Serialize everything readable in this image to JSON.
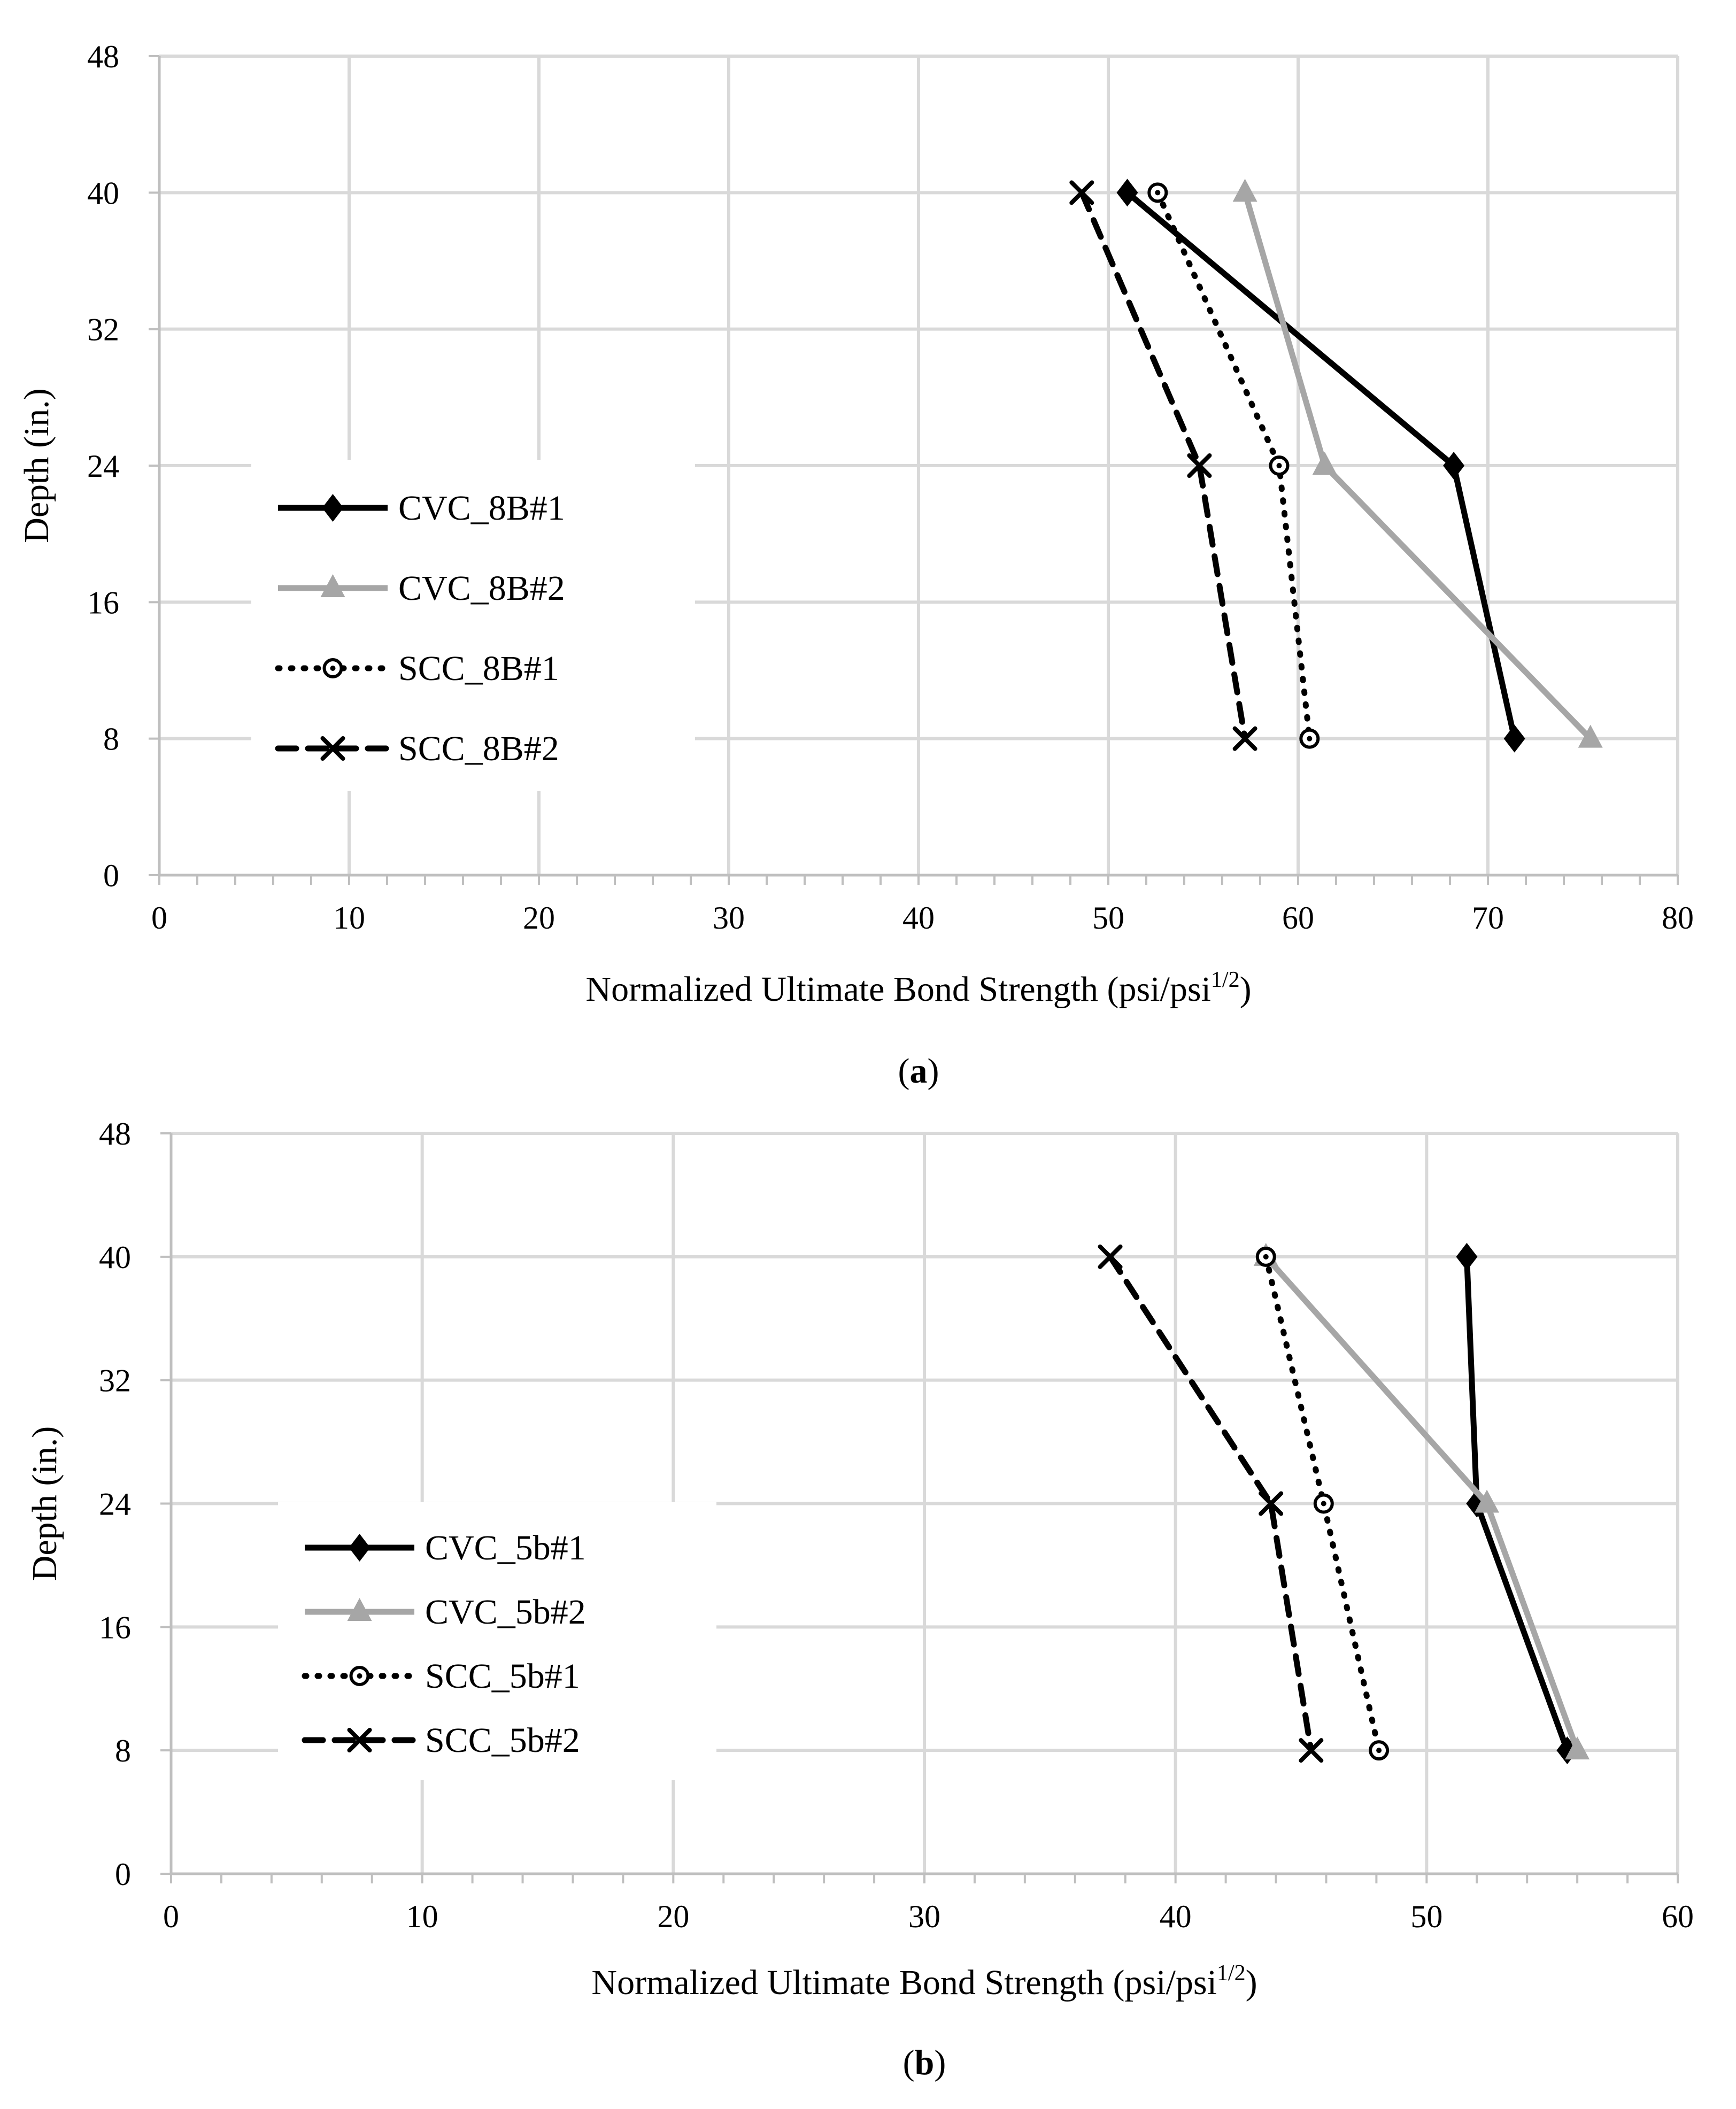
{
  "colors": {
    "black": "#000000",
    "gray": "#a6a6a6",
    "grid": "#d9d9d9",
    "axis": "#bfbfbf"
  },
  "chart_data": [
    {
      "type": "line",
      "caption_letter": "a",
      "xlabel": "Normalized Ultimate Bond Strength (psi/psi",
      "xlabel_sup": "1/2",
      "xlabel_close": ")",
      "ylabel": "Depth (in.)",
      "xlim": [
        0,
        80
      ],
      "ylim": [
        0,
        48
      ],
      "xticks": [
        0,
        10,
        20,
        30,
        40,
        50,
        60,
        70,
        80
      ],
      "yticks": [
        0,
        8,
        16,
        24,
        32,
        40,
        48
      ],
      "series": [
        {
          "name": "CVC_8B#1",
          "color": "#000000",
          "dash": "solid",
          "marker": "diamond",
          "points": [
            [
              51.0,
              40
            ],
            [
              68.2,
              24
            ],
            [
              71.4,
              8
            ]
          ]
        },
        {
          "name": "CVC_8B#2",
          "color": "#a6a6a6",
          "dash": "solid",
          "marker": "triangle",
          "points": [
            [
              57.2,
              40
            ],
            [
              61.4,
              24
            ],
            [
              75.4,
              8
            ]
          ]
        },
        {
          "name": "SCC_8B#1",
          "color": "#000000",
          "dash": "dotted",
          "marker": "circle",
          "points": [
            [
              52.6,
              40
            ],
            [
              59.0,
              24
            ],
            [
              60.6,
              8
            ]
          ]
        },
        {
          "name": "SCC_8B#2",
          "color": "#000000",
          "dash": "dashed",
          "marker": "x",
          "points": [
            [
              48.6,
              40
            ],
            [
              54.8,
              24
            ],
            [
              57.2,
              8
            ]
          ]
        }
      ]
    },
    {
      "type": "line",
      "caption_letter": "b",
      "xlabel": "Normalized Ultimate Bond Strength (psi/psi",
      "xlabel_sup": "1/2",
      "xlabel_close": ")",
      "ylabel": "Depth (in.)",
      "xlim": [
        0,
        60
      ],
      "ylim": [
        0,
        48
      ],
      "xticks": [
        0,
        10,
        20,
        30,
        40,
        50,
        60
      ],
      "yticks": [
        0,
        8,
        16,
        24,
        32,
        40,
        48
      ],
      "series": [
        {
          "name": "CVC_5b#1",
          "color": "#000000",
          "dash": "solid",
          "marker": "diamond",
          "points": [
            [
              51.6,
              40
            ],
            [
              52.0,
              24
            ],
            [
              55.6,
              8
            ]
          ]
        },
        {
          "name": "CVC_5b#2",
          "color": "#a6a6a6",
          "dash": "solid",
          "marker": "triangle",
          "points": [
            [
              43.6,
              40
            ],
            [
              52.4,
              24
            ],
            [
              56.0,
              8
            ]
          ]
        },
        {
          "name": "SCC_5b#1",
          "color": "#000000",
          "dash": "dotted",
          "marker": "circle",
          "points": [
            [
              43.6,
              40
            ],
            [
              45.9,
              24
            ],
            [
              48.1,
              8
            ]
          ]
        },
        {
          "name": "SCC_5b#2",
          "color": "#000000",
          "dash": "dashed",
          "marker": "x",
          "points": [
            [
              37.4,
              40
            ],
            [
              43.8,
              24
            ],
            [
              45.4,
              8
            ]
          ]
        }
      ]
    }
  ]
}
